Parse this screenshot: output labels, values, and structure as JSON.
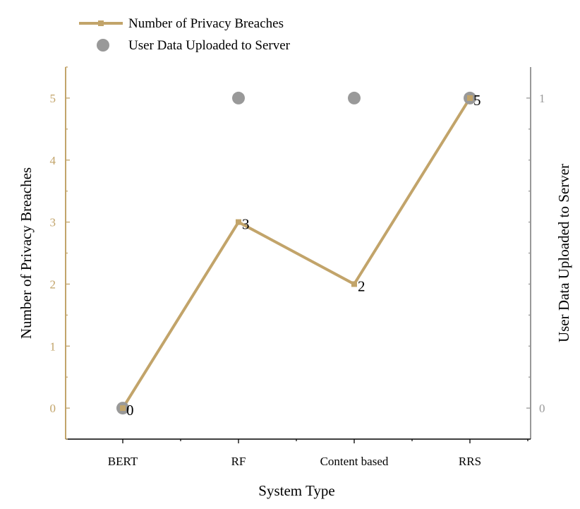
{
  "chart_data": {
    "type": "line",
    "categories": [
      "BERT",
      "RF",
      "Content based",
      "RRS"
    ],
    "series": [
      {
        "name": "Number of Privacy Breaches",
        "axis": "left",
        "style": "line-square",
        "color": "#c2a46a",
        "values": [
          0,
          3,
          2,
          5
        ],
        "data_labels": [
          "0",
          "3",
          "2",
          "5"
        ]
      },
      {
        "name": "User Data Uploaded to Server",
        "axis": "right",
        "style": "scatter-circle",
        "color": "#999999",
        "values": [
          0,
          1,
          1,
          1
        ]
      }
    ],
    "xlabel": "System Type",
    "ylabel_left": "Number of Privacy Breaches",
    "ylabel_right": "User Data Uploaded to Server",
    "ylim_left": [
      -0.5,
      5.5
    ],
    "yticks_left": [
      "0",
      "1",
      "2",
      "3",
      "4",
      "5"
    ],
    "ylim_right": [
      -0.1,
      1.1
    ],
    "yticks_right": [
      "0",
      "1"
    ],
    "left_axis_color": "#c2a46a",
    "right_axis_color": "#999999",
    "grid": false,
    "legend_position": "top-left"
  }
}
